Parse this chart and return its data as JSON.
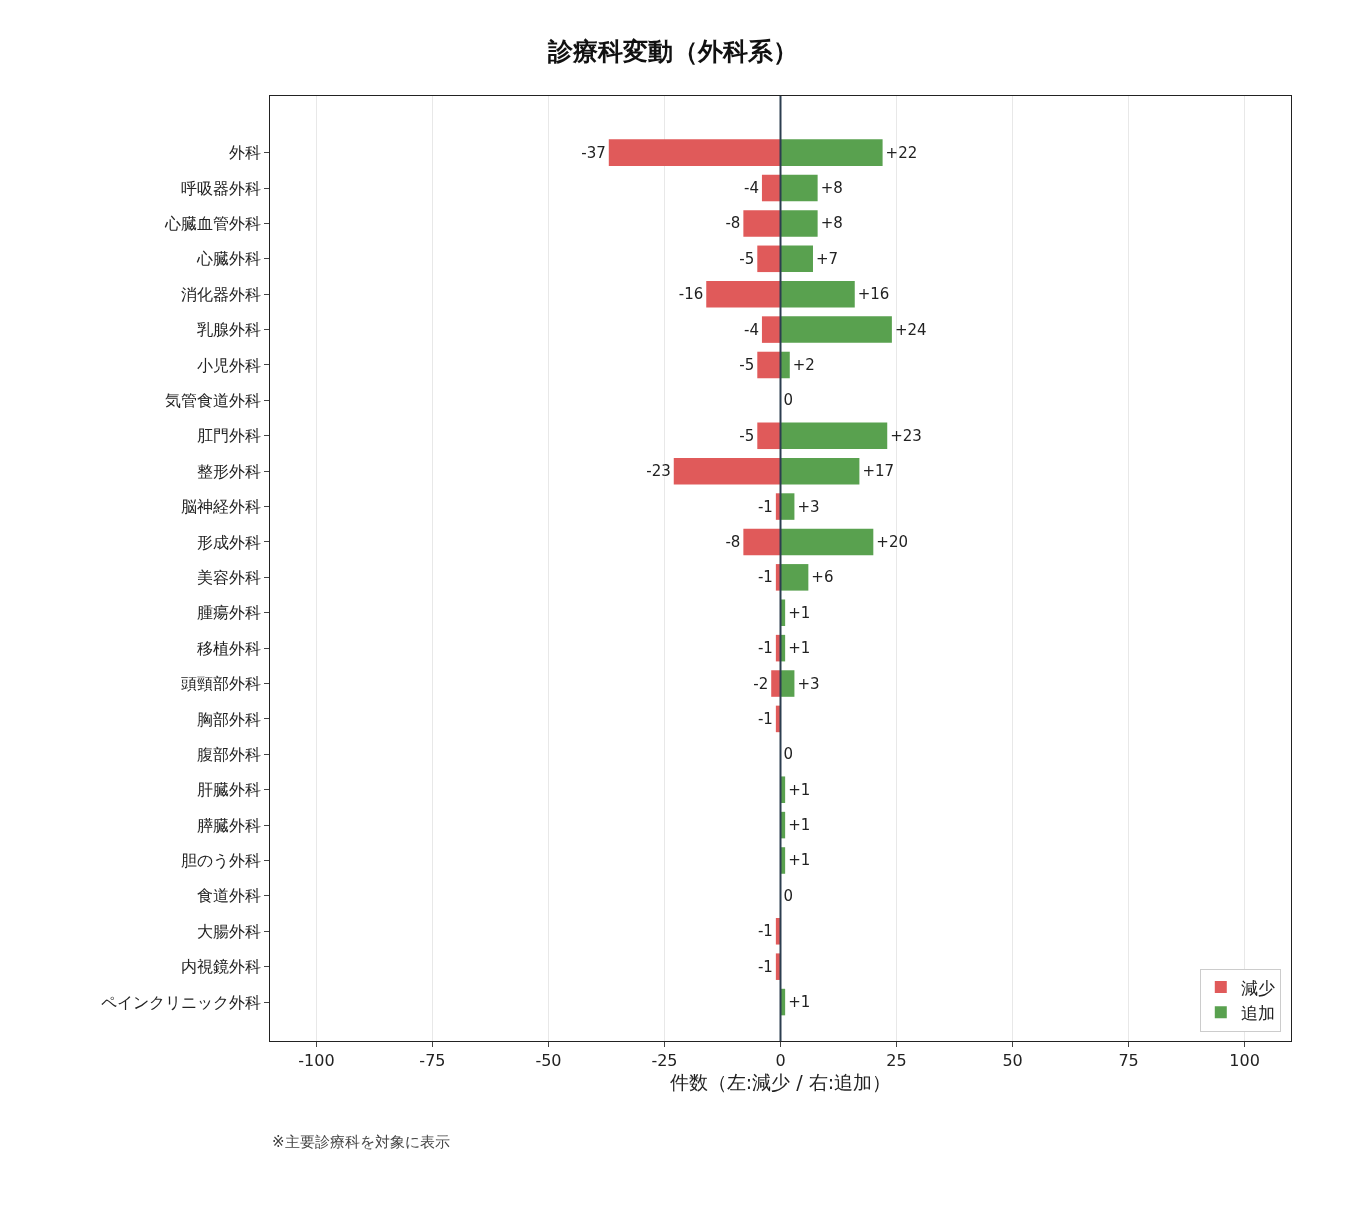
{
  "chart_data": {
    "type": "bar",
    "orientation": "horizontal",
    "stacked": true,
    "title": "診療科変動（外科系）",
    "xlabel": "件数（左:減少 / 右:追加）",
    "annotations": [
      "※主要診療科を対象に表示"
    ],
    "categories": [
      "外科",
      "呼吸器外科",
      "心臓血管外科",
      "心臓外科",
      "消化器外科",
      "乳腺外科",
      "小児外科",
      "気管食道外科",
      "肛門外科",
      "整形外科",
      "脳神経外科",
      "形成外科",
      "美容外科",
      "腫瘍外科",
      "移植外科",
      "頭頸部外科",
      "胸部外科",
      "腹部外科",
      "肝臓外科",
      "膵臓外科",
      "胆のう外科",
      "食道外科",
      "大腸外科",
      "内視鏡外科",
      "ペインクリニック外科"
    ],
    "series": [
      {
        "name": "減少",
        "color": "#e05a5a",
        "values": [
          -37,
          -4,
          -8,
          -5,
          -16,
          -4,
          -5,
          0,
          -5,
          -23,
          -1,
          -8,
          -1,
          0,
          -1,
          -2,
          -1,
          0,
          0,
          0,
          0,
          0,
          -1,
          -1,
          0
        ],
        "value_labels": [
          "-37",
          "-4",
          "-8",
          "-5",
          "-16",
          "-4",
          "-5",
          null,
          "-5",
          "-23",
          "-1",
          "-8",
          "-1",
          null,
          "-1",
          "-2",
          "-1",
          null,
          null,
          null,
          null,
          null,
          "-1",
          "-1",
          null
        ]
      },
      {
        "name": "追加",
        "color": "#59a14f",
        "values": [
          22,
          8,
          8,
          7,
          16,
          24,
          2,
          0,
          23,
          17,
          3,
          20,
          6,
          1,
          1,
          3,
          0,
          0,
          1,
          1,
          1,
          0,
          0,
          0,
          1
        ],
        "value_labels": [
          "+22",
          "+8",
          "+8",
          "+7",
          "+16",
          "+24",
          "+2",
          "0",
          "+23",
          "+17",
          "+3",
          "+20",
          "+6",
          "+1",
          "+1",
          "+3",
          null,
          "0",
          "+1",
          "+1",
          "+1",
          "0",
          null,
          null,
          "+1"
        ]
      }
    ],
    "xlim": [
      -110,
      110
    ],
    "xticks": [
      -100,
      -75,
      -50,
      -25,
      0,
      25,
      50,
      75,
      100
    ],
    "ref_lines": [
      {
        "axis": "x",
        "value": 0,
        "color": "#2c3e50"
      }
    ],
    "grid": "x",
    "legend": "bottom right"
  }
}
